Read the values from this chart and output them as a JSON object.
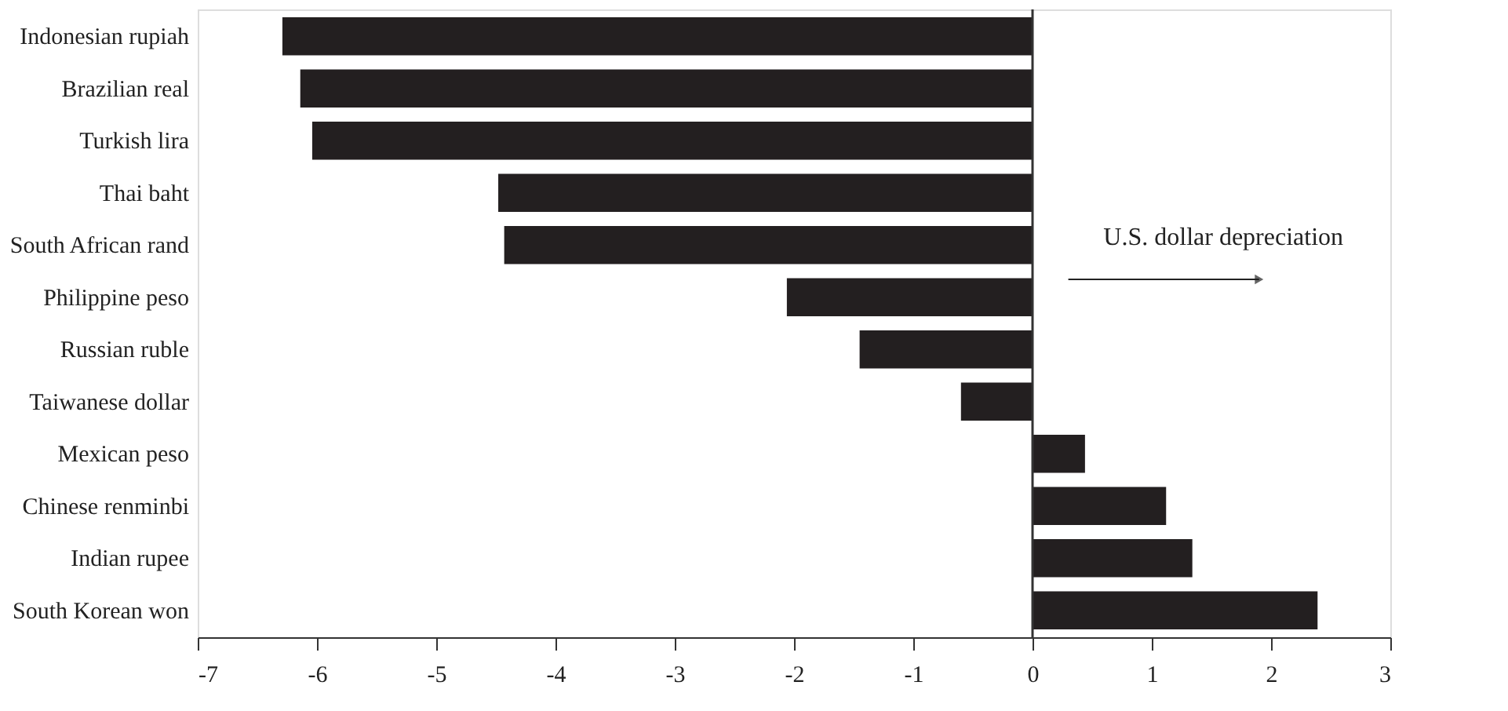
{
  "chart_data": {
    "type": "bar",
    "orientation": "horizontal",
    "categories": [
      "Indonesian rupiah",
      "Brazilian real",
      "Turkish lira",
      "Thai baht",
      "South African rand",
      "Philippine peso",
      "Russian ruble",
      "Taiwanese dollar",
      "Mexican peso",
      "Chinese renminbi",
      "Indian rupee",
      "South Korean won"
    ],
    "values": [
      -6.29,
      -6.14,
      -6.04,
      -4.48,
      -4.43,
      -2.06,
      -1.45,
      -0.6,
      0.44,
      1.12,
      1.34,
      2.39
    ],
    "color": "#231f20",
    "xlim": [
      -7,
      3
    ],
    "xticks": [
      -7,
      -6,
      -5,
      -4,
      -3,
      -2,
      -1,
      0,
      1,
      2,
      3
    ],
    "annotations": [
      "U.S. dollar depreciation"
    ],
    "legend": false
  }
}
